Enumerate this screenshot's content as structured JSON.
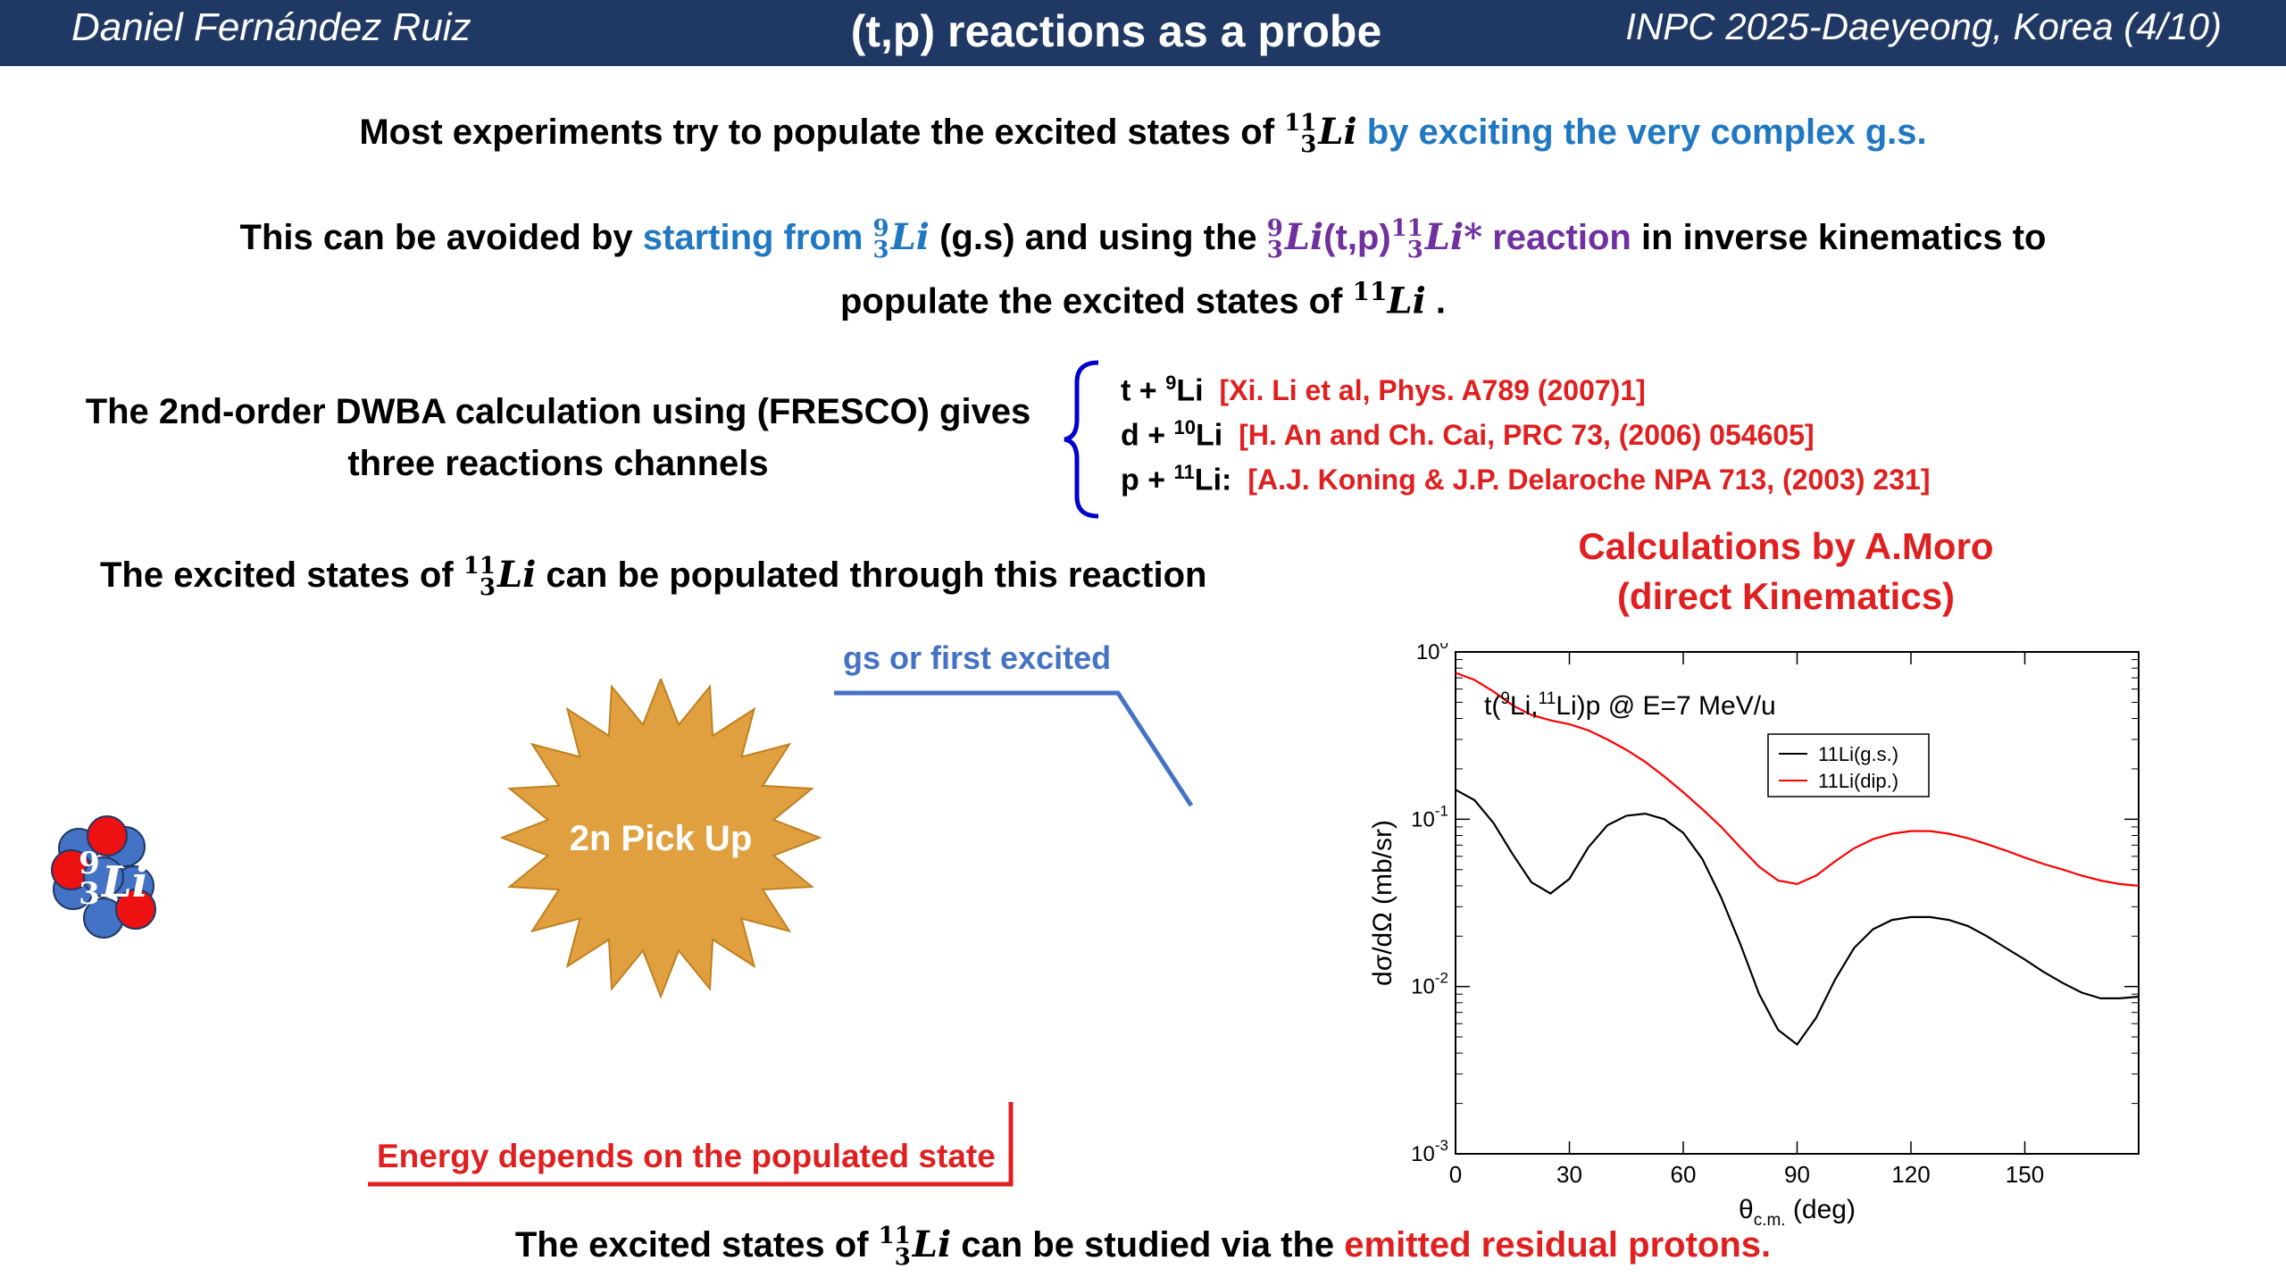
{
  "header": {
    "author": "Daniel Fernández Ruiz",
    "title": "(t,p) reactions as a probe",
    "conference": "INPC 2025-Daeyeong, Korea     (4/10)"
  },
  "line1": {
    "text_a": "Most experiments try to populate the excited states of ",
    "iso_mass": "11",
    "iso_z": "3",
    "iso_sym": "Li",
    "text_b": " by exciting the very complex g.s."
  },
  "line2": {
    "text_a": "This can be avoided by ",
    "text_b": "starting from ",
    "iso1_mass": "9",
    "iso1_z": "3",
    "iso1_sym": "Li",
    "text_c": " (g.s) and using the ",
    "iso2_mass": "9",
    "iso2_z": "3",
    "iso2_sym": "Li",
    "text_d": "(t,p)",
    "iso3_mass": "11",
    "iso3_z": "3",
    "iso3_sym": "Li*",
    "text_e": " reaction",
    "text_f": " in inverse kinematics to",
    "line3_a": "populate the excited states of ",
    "iso4_mass": "11",
    "iso4_sym": "Li",
    "line3_b": " ."
  },
  "dwba": {
    "line_a": "The 2nd-order DWBA calculation using (FRESCO) gives",
    "line_b": "three reactions channels",
    "channels": [
      {
        "pre": "t + ",
        "mass": "9",
        "post": "Li",
        "ref": "[Xi. Li et al,  Phys. A789 (2007)1]"
      },
      {
        "pre": "d + ",
        "mass": "10",
        "post": "Li",
        "ref": "[H. An and Ch. Cai, PRC 73, (2006) 054605]"
      },
      {
        "pre": "p + ",
        "mass": "11",
        "post": "Li:",
        "ref": "[A.J. Koning & J.P. Delaroche NPA 713, (2003) 231]"
      }
    ]
  },
  "line4": {
    "text_a": "The excited states of ",
    "iso_mass": "11",
    "iso_z": "3",
    "iso_sym": "Li",
    "text_b": " can be populated through this reaction"
  },
  "moro": {
    "line_a": "Calculations by A.Moro",
    "line_b": "(direct Kinematics)"
  },
  "diagram": {
    "nucleus_mass": "9",
    "nucleus_z": "3",
    "nucleus_sym": "Li",
    "star_label": "2n Pick Up",
    "gs_label": "gs or first excited",
    "energy_label": "Energy depends on the populated state",
    "star_color": "#e0a040",
    "line_color": "#4472c4"
  },
  "bottom": {
    "text_a": "The excited states of ",
    "iso_mass": "11",
    "iso_z": "3",
    "iso_sym": "Li",
    "text_b": " can be studied via the ",
    "text_c": "emitted residual protons."
  },
  "chart_data": {
    "type": "line",
    "title": "t(9Li,11Li)p @ E=7 MeV/u",
    "title_parts": {
      "a": "t(",
      "m1": "9",
      "b": "Li,",
      "m2": "11",
      "c": "Li)p @ E=7 MeV/u"
    },
    "xlabel": "θc.m. (deg)",
    "xlabel_parts": {
      "theta": "θ",
      "sub": "c.m.",
      "rest": " (deg)"
    },
    "ylabel": "dσ/dΩ (mb/sr)",
    "xlim": [
      0,
      180
    ],
    "ylim": [
      0.001,
      1
    ],
    "yscale": "log",
    "xticks": [
      "0",
      "30",
      "60",
      "90",
      "120",
      "150"
    ],
    "xtick_values": [
      0,
      30,
      60,
      90,
      120,
      150
    ],
    "yticks": [
      {
        "value": 1,
        "base": "10",
        "exp": "0"
      },
      {
        "value": 0.1,
        "base": "10",
        "exp": "-1"
      },
      {
        "value": 0.01,
        "base": "10",
        "exp": "-2"
      },
      {
        "value": 0.001,
        "base": "10",
        "exp": "-3"
      }
    ],
    "legend_position": "top-right",
    "series": [
      {
        "name": "11Li(g.s.)",
        "color": "#000000",
        "x": [
          0,
          5,
          10,
          15,
          20,
          25,
          30,
          35,
          40,
          45,
          50,
          55,
          60,
          65,
          70,
          75,
          80,
          85,
          90,
          95,
          100,
          105,
          110,
          115,
          120,
          125,
          130,
          135,
          140,
          145,
          150,
          155,
          160,
          165,
          170,
          175,
          180
        ],
        "y": [
          0.15,
          0.13,
          0.095,
          0.062,
          0.042,
          0.036,
          0.044,
          0.068,
          0.092,
          0.105,
          0.108,
          0.1,
          0.083,
          0.058,
          0.034,
          0.018,
          0.009,
          0.0055,
          0.0045,
          0.0065,
          0.011,
          0.017,
          0.022,
          0.025,
          0.026,
          0.026,
          0.025,
          0.023,
          0.02,
          0.017,
          0.0145,
          0.0122,
          0.0105,
          0.0092,
          0.0085,
          0.0085,
          0.0087
        ]
      },
      {
        "name": "11Li(dip.)",
        "color": "#ff0000",
        "x": [
          0,
          5,
          10,
          15,
          20,
          25,
          30,
          35,
          40,
          45,
          50,
          55,
          60,
          65,
          70,
          75,
          80,
          85,
          90,
          95,
          100,
          105,
          110,
          115,
          120,
          125,
          130,
          135,
          140,
          145,
          150,
          155,
          160,
          165,
          170,
          175,
          180
        ],
        "y": [
          0.75,
          0.68,
          0.58,
          0.48,
          0.42,
          0.39,
          0.37,
          0.34,
          0.3,
          0.26,
          0.22,
          0.18,
          0.145,
          0.115,
          0.09,
          0.068,
          0.052,
          0.043,
          0.041,
          0.046,
          0.056,
          0.067,
          0.076,
          0.082,
          0.085,
          0.085,
          0.082,
          0.077,
          0.071,
          0.065,
          0.059,
          0.054,
          0.05,
          0.046,
          0.043,
          0.041,
          0.04
        ]
      }
    ]
  }
}
